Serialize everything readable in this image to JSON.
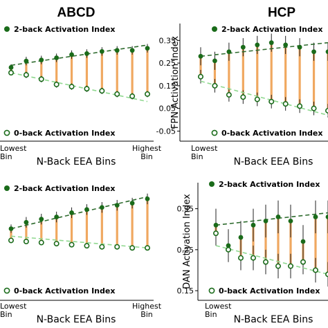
{
  "columns": [
    "ABCD",
    "HCP"
  ],
  "colors": {
    "two_back": "#1a6b1a",
    "zero_back_fill": "#ffffff",
    "zero_back_edge": "#1a6b1a",
    "bar": "#f0a860",
    "errbar": "#222222",
    "trend_two": "#2e6b2e",
    "trend_zero": "#8fd88f"
  },
  "chart_data": [
    {
      "panel": "ABCD-top",
      "type": "scatter",
      "title": "ABCD",
      "xlabel": "N-Back EEA Bins",
      "ylabel": "",
      "bin_labels": {
        "first": [
          "Lowest",
          "Bin"
        ],
        "last": [
          "Highest",
          "Bin"
        ]
      },
      "yticks": [],
      "ylim": [
        0.0,
        1.0
      ],
      "legend": {
        "two_back": "2-back Activation Index",
        "zero_back": "0-back Activation Index"
      },
      "x": [
        1,
        2,
        3,
        4,
        5,
        6,
        7,
        8,
        9,
        10
      ],
      "series": [
        {
          "name": "2-back Activation Index",
          "values": [
            0.64,
            0.7,
            0.71,
            0.73,
            0.76,
            0.77,
            0.79,
            0.8,
            0.8,
            0.82
          ],
          "err": [
            0.03,
            0.04,
            0.04,
            0.04,
            0.04,
            0.04,
            0.04,
            0.04,
            0.04,
            0.04
          ]
        },
        {
          "name": "0-back Activation Index",
          "values": [
            0.59,
            0.57,
            0.53,
            0.48,
            0.46,
            0.44,
            0.42,
            0.39,
            0.37,
            0.39
          ],
          "err": [
            0.02,
            0.03,
            0.03,
            0.03,
            0.03,
            0.03,
            0.03,
            0.03,
            0.03,
            0.03
          ]
        }
      ],
      "trend": {
        "two_back": [
          0.66,
          0.85
        ],
        "zero_back": [
          0.59,
          0.32
        ]
      }
    },
    {
      "panel": "HCP-top",
      "type": "scatter",
      "title": "HCP",
      "xlabel": "N-Back EEA Bins",
      "ylabel": "FPN Activation Index",
      "bin_labels": {
        "first": [
          "Lowest",
          "Bin"
        ],
        "last": []
      },
      "yticks": [
        "-0.05",
        "0.05",
        "0.15",
        "0.25",
        "0.35"
      ],
      "ytick_values": [
        -0.05,
        0.05,
        0.15,
        0.25,
        0.35
      ],
      "ylim": [
        -0.07,
        0.4
      ],
      "legend": {
        "two_back": "2-back Activation Index",
        "zero_back": "0-back Activation Index"
      },
      "x": [
        1,
        2,
        3,
        4,
        5,
        6,
        7,
        8,
        9,
        10
      ],
      "series": [
        {
          "name": "2-back Activation Index",
          "values": [
            0.28,
            0.26,
            0.3,
            0.32,
            0.33,
            0.34,
            0.33,
            0.32,
            0.3,
            0.3
          ],
          "err": [
            0.04,
            0.04,
            0.04,
            0.04,
            0.04,
            0.04,
            0.04,
            0.04,
            0.04,
            0.04
          ]
        },
        {
          "name": "0-back Activation Index",
          "values": [
            0.19,
            0.15,
            0.11,
            0.1,
            0.09,
            0.08,
            0.07,
            0.06,
            0.05,
            0.04
          ],
          "err": [
            0.03,
            0.03,
            0.03,
            0.03,
            0.03,
            0.03,
            0.03,
            0.03,
            0.03,
            0.03
          ]
        }
      ],
      "trend": {
        "two_back": [
          0.28,
          0.34
        ],
        "zero_back": [
          0.17,
          0.02
        ]
      }
    },
    {
      "panel": "ABCD-bottom",
      "type": "scatter",
      "title": "",
      "xlabel": "N-Back EEA Bins",
      "ylabel": "",
      "bin_labels": {
        "first": [
          "Lowest",
          "Bin"
        ],
        "last": [
          "Highest",
          "Bin"
        ]
      },
      "yticks": [],
      "ylim": [
        0.0,
        1.0
      ],
      "legend": {
        "two_back": "2-back Activation Index",
        "zero_back": "0-back Activation Index"
      },
      "x": [
        1,
        2,
        3,
        4,
        5,
        6,
        7,
        8,
        9,
        10
      ],
      "series": [
        {
          "name": "2-back Activation Index",
          "values": [
            0.62,
            0.68,
            0.71,
            0.73,
            0.77,
            0.8,
            0.82,
            0.84,
            0.86,
            0.9
          ],
          "err": [
            0.04,
            0.05,
            0.05,
            0.05,
            0.05,
            0.05,
            0.05,
            0.05,
            0.05,
            0.05
          ]
        },
        {
          "name": "0-back Activation Index",
          "values": [
            0.51,
            0.5,
            0.49,
            0.48,
            0.47,
            0.46,
            0.45,
            0.45,
            0.44,
            0.44
          ],
          "err": [
            0.02,
            0.02,
            0.02,
            0.02,
            0.02,
            0.02,
            0.02,
            0.02,
            0.02,
            0.02
          ]
        }
      ],
      "trend": {
        "two_back": [
          0.62,
          0.92
        ],
        "zero_back": [
          0.55,
          0.44
        ]
      }
    },
    {
      "panel": "HCP-bottom",
      "type": "scatter",
      "title": "",
      "xlabel": "N-Back EEA Bins",
      "ylabel": "DAN Activation Index",
      "bin_labels": {
        "first": [
          "Lowest",
          "Bin"
        ],
        "last": []
      },
      "yticks": [
        "0.15",
        "0.25",
        "0.35"
      ],
      "ytick_values": [
        0.15,
        0.25,
        0.35
      ],
      "ylim": [
        0.14,
        0.4
      ],
      "legend": {
        "two_back": "2-back Activation Index",
        "zero_back": "0-back Activation Index"
      },
      "x": [
        1,
        2,
        3,
        4,
        5,
        6,
        7,
        8,
        9,
        10
      ],
      "series": [
        {
          "name": "2-back Activation Index",
          "values": [
            0.31,
            0.26,
            0.28,
            0.31,
            0.32,
            0.33,
            0.32,
            0.27,
            0.33,
            0.33
          ],
          "err": [
            0.04,
            0.04,
            0.04,
            0.04,
            0.04,
            0.04,
            0.04,
            0.04,
            0.04,
            0.04
          ]
        },
        {
          "name": "0-back Activation Index",
          "values": [
            0.29,
            0.25,
            0.23,
            0.23,
            0.22,
            0.21,
            0.21,
            0.22,
            0.2,
            0.19
          ],
          "err": [
            0.03,
            0.03,
            0.03,
            0.03,
            0.03,
            0.03,
            0.03,
            0.03,
            0.03,
            0.03
          ]
        }
      ],
      "trend": {
        "two_back": [
          0.31,
          0.34
        ],
        "zero_back": [
          0.26,
          0.19
        ]
      }
    }
  ]
}
